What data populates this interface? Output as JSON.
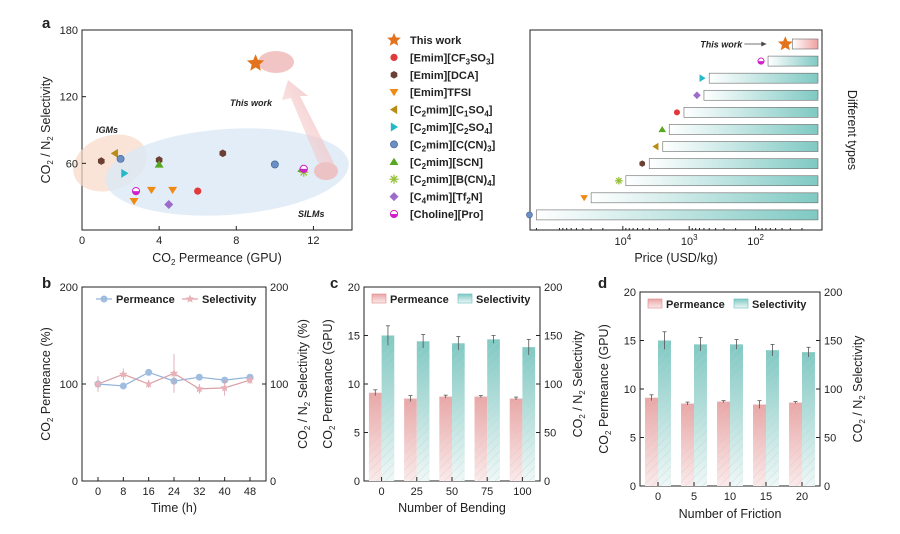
{
  "panel_labels": {
    "a": "a",
    "b": "b",
    "c": "c",
    "d": "d"
  },
  "chart_data": [
    {
      "id": "a1",
      "type": "scatter",
      "xlabel_main": "CO",
      "xlabel_sub": "2",
      "xlabel_rest": " Permeance (GPU)",
      "ylabel_main": "CO",
      "ylabel_sub": "2",
      "ylabel_mid": " / N",
      "ylabel_sub2": "2",
      "ylabel_rest": " Selectivity",
      "xlim": [
        0,
        14
      ],
      "ylim": [
        0,
        180
      ],
      "xticks": [
        "0",
        "4",
        "8",
        "12"
      ],
      "xtick_values": [
        0,
        4,
        8,
        12
      ],
      "yticks": [
        "60",
        "120",
        "180"
      ],
      "ytick_values": [
        60,
        120,
        180
      ],
      "annotations": {
        "igm": "IGMs",
        "silm": "SILMs",
        "this_work": "This work"
      },
      "points": [
        {
          "series": "This work",
          "x": 9.0,
          "y": 150
        },
        {
          "series": "[Emim][CF3SO3]",
          "x": 6.0,
          "y": 35
        },
        {
          "series": "[Emim][DCA]",
          "x": 1.0,
          "y": 62
        },
        {
          "series": "[Emim][DCA]",
          "x": 4.0,
          "y": 63
        },
        {
          "series": "[Emim][DCA]",
          "x": 7.3,
          "y": 69
        },
        {
          "series": "[Emim][TFSI]",
          "x": 2.7,
          "y": 26
        },
        {
          "series": "[Emim][TFSI]",
          "x": 3.6,
          "y": 36
        },
        {
          "series": "[Emim][TFSI]",
          "x": 4.7,
          "y": 36
        },
        {
          "series": "[C2mim][C1SO4]",
          "x": 1.7,
          "y": 69
        },
        {
          "series": "[C2mim][C2SO4]",
          "x": 2.2,
          "y": 51
        },
        {
          "series": "[C2mim][C(CN)3]",
          "x": 2.0,
          "y": 64
        },
        {
          "series": "[C2mim][C(CN)3]",
          "x": 10.0,
          "y": 59
        },
        {
          "series": "[C2mim][SCN]",
          "x": 4.0,
          "y": 59
        },
        {
          "series": "[C2mim][SCN]",
          "x": 11.4,
          "y": 55
        },
        {
          "series": "[C2mim][B(CN)4]",
          "x": 11.5,
          "y": 52
        },
        {
          "series": "[C4mim][Tf2N]",
          "x": 4.5,
          "y": 23
        },
        {
          "series": "[Choline][Pro]",
          "x": 2.8,
          "y": 35
        },
        {
          "series": "[Choline][Pro]",
          "x": 11.5,
          "y": 55
        }
      ]
    },
    {
      "id": "a2",
      "type": "bar",
      "orientation": "horizontal",
      "xlabel": "Price (USD/kg)",
      "ylabel": "Different types",
      "xscale": "log-reversed",
      "xlim": [
        250000,
        10
      ],
      "xtick_labels": [
        {
          "base": "10",
          "exp": "4",
          "value": 10000
        },
        {
          "base": "10",
          "exp": "3",
          "value": 1000
        },
        {
          "base": "10",
          "exp": "2",
          "value": 100
        }
      ],
      "this_work_label": "This work",
      "categories": [
        "This work",
        "[Choline][Pro]",
        "[C2mim][C2SO4]",
        "[C4mim][Tf2N]",
        "[Emim][CF3SO3]",
        "[C2mim][SCN]",
        "[C2mim][C1SO4]",
        "[Emim][DCA]",
        "[C2mim][B(CN)4]",
        "[Emim][TFSI]",
        "[C2mim][C(CN)3]"
      ],
      "values": [
        28,
        65,
        500,
        600,
        1200,
        2000,
        2500,
        4000,
        9000,
        30000,
        200000
      ]
    },
    {
      "id": "b",
      "type": "line",
      "x": [
        0,
        8,
        16,
        24,
        32,
        40,
        48
      ],
      "xticks": [
        "0",
        "8",
        "16",
        "24",
        "32",
        "40",
        "48"
      ],
      "xlabel": "Time (h)",
      "ylabel_left_main": "CO",
      "ylabel_left_sub": "2",
      "ylabel_left_rest": " Permeance (%)",
      "ylabel_right_main": "CO",
      "ylabel_right_sub": "2",
      "ylabel_right_mid": " / N",
      "ylabel_right_sub2": "2",
      "ylabel_right_rest": " Selectivity (%)",
      "ylim_left": [
        0,
        200
      ],
      "ylim_right": [
        0,
        200
      ],
      "yticks_left": [
        "0",
        "100",
        "200"
      ],
      "yticks_right": [
        "0",
        "100",
        "200"
      ],
      "series": [
        {
          "name": "Permeance",
          "values": [
            100,
            98,
            112,
            103,
            107,
            104,
            107
          ],
          "errors": [
            4,
            2,
            3,
            4,
            3,
            3,
            2
          ]
        },
        {
          "name": "Selectivity",
          "values": [
            100,
            110,
            100,
            111,
            95,
            96,
            104
          ],
          "errors": [
            8,
            6,
            4,
            20,
            5,
            8,
            4
          ]
        }
      ]
    },
    {
      "id": "c",
      "type": "bar",
      "categories": [
        "0",
        "25",
        "50",
        "75",
        "100"
      ],
      "xlabel": "Number of Bending",
      "ylabel_left_main": "CO",
      "ylabel_left_sub": "2",
      "ylabel_left_rest": " Permeance (GPU)",
      "ylabel_right_main": "CO",
      "ylabel_right_sub": "2",
      "ylabel_right_mid": " / N",
      "ylabel_right_sub2": "2",
      "ylabel_right_rest": " Selectivity",
      "ylim_left": [
        0,
        20
      ],
      "ylim_right": [
        0,
        200
      ],
      "yticks_left": [
        "0",
        "5",
        "10",
        "15",
        "20"
      ],
      "yticks_right": [
        "0",
        "50",
        "100",
        "150",
        "200"
      ],
      "series": [
        {
          "name": "Permeance",
          "axis": "left",
          "values": [
            9.1,
            8.5,
            8.7,
            8.7,
            8.5
          ],
          "errors": [
            0.3,
            0.3,
            0.15,
            0.1,
            0.15
          ]
        },
        {
          "name": "Selectivity",
          "axis": "right",
          "values": [
            150,
            144,
            142,
            146,
            138
          ],
          "errors": [
            10,
            7,
            7,
            4,
            8
          ]
        }
      ]
    },
    {
      "id": "d",
      "type": "bar",
      "categories": [
        "0",
        "5",
        "10",
        "15",
        "20"
      ],
      "xlabel": "Number of Friction",
      "ylabel_left_main": "CO",
      "ylabel_left_sub": "2",
      "ylabel_left_rest": " Permeance (GPU)",
      "ylabel_right_main": "CO",
      "ylabel_right_sub": "2",
      "ylabel_right_mid": " / N",
      "ylabel_right_sub2": "2",
      "ylabel_right_rest": " Selectivity",
      "ylim_left": [
        0,
        20
      ],
      "ylim_right": [
        0,
        200
      ],
      "yticks_left": [
        "0",
        "5",
        "10",
        "15",
        "20"
      ],
      "yticks_right": [
        "0",
        "50",
        "100",
        "150",
        "200"
      ],
      "series": [
        {
          "name": "Permeance",
          "axis": "left",
          "values": [
            9.1,
            8.5,
            8.7,
            8.4,
            8.6
          ],
          "errors": [
            0.3,
            0.15,
            0.1,
            0.4,
            0.1
          ]
        },
        {
          "name": "Selectivity",
          "axis": "right",
          "values": [
            150,
            146,
            146,
            140,
            138
          ],
          "errors": [
            9,
            7,
            5,
            6,
            5
          ]
        }
      ]
    }
  ],
  "legend_a": [
    {
      "name": "This work",
      "main": "This work",
      "subs": []
    },
    {
      "name": "[Emim][CF3SO3]",
      "parts": [
        "[Emim][CF",
        "3",
        "SO",
        "3",
        "]"
      ]
    },
    {
      "name": "[Emim][DCA]",
      "parts": [
        "[Emim][DCA]"
      ]
    },
    {
      "name": "[Emim]TFSI",
      "parts": [
        "[Emim]TFSI"
      ]
    },
    {
      "name": "[C2mim][C1SO4]",
      "parts": [
        "[C",
        "2",
        "mim][C",
        "1",
        "SO",
        "4",
        "]"
      ]
    },
    {
      "name": "[C2mim][C2SO4]",
      "parts": [
        "[C",
        "2",
        "mim][C",
        "2",
        "SO",
        "4",
        "]"
      ]
    },
    {
      "name": "[C2mim][C(CN)3]",
      "parts": [
        "[C",
        "2",
        "mim][C(CN)",
        "3",
        "]"
      ]
    },
    {
      "name": "[C2mim][SCN]",
      "parts": [
        "[C",
        "2",
        "mim][SCN]"
      ]
    },
    {
      "name": "[C2mim][B(CN)4]",
      "parts": [
        "[C",
        "2",
        "mim][B(CN)",
        "4",
        "]"
      ]
    },
    {
      "name": "[C4mim][Tf2N]",
      "parts": [
        "[C",
        "4",
        "mim][Tf",
        "2",
        "N]"
      ]
    },
    {
      "name": "[Choline][Pro]",
      "parts": [
        "[Choline][Pro]"
      ]
    }
  ],
  "series_colors": {
    "This work": "#e2721b",
    "[Emim][CF3SO3]": "#e03a3a",
    "[Emim][DCA]": "#6b4032",
    "[Emim][TFSI]": "#ef8a12",
    "[C2mim][C1SO4]": "#b78d16",
    "[C2mim][C2SO4]": "#23b9c9",
    "[C2mim][C(CN)3]": "#6a8fc4",
    "[C2mim][SCN]": "#55a81f",
    "[C2mim][B(CN)4]": "#97c23a",
    "[C4mim][Tf2N]": "#9d6bc9",
    "[Choline][Pro]": "#d020c8",
    "Permeance": "#e8a3a3",
    "Selectivity": "#7ec9c2"
  },
  "legend_bc": {
    "permeance": "Permeance",
    "selectivity": "Selectivity"
  }
}
